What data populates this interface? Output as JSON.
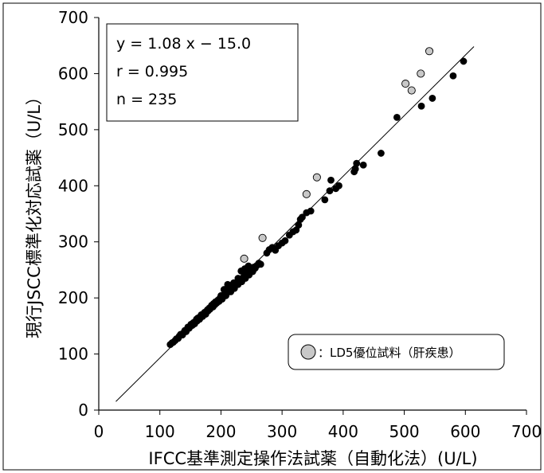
{
  "chart_data": {
    "type": "scatter",
    "xlabel": "IFCC基準測定操作法試薬（自動化法）(U/L)",
    "ylabel": "現行JSCC標準化対応試薬（U/L）",
    "xlim": [
      0,
      700
    ],
    "ylim": [
      0,
      700
    ],
    "xticks": [
      "0",
      "100",
      "200",
      "300",
      "400",
      "500",
      "600",
      "700"
    ],
    "yticks": [
      "0",
      "100",
      "200",
      "300",
      "400",
      "500",
      "600",
      "700"
    ],
    "grid": false,
    "stats": {
      "equation": "y = 1.08 x − 15.0",
      "r": "r = 0.995",
      "n": "n = 235"
    },
    "regression": {
      "slope": 1.08,
      "intercept": -15.0,
      "x_range": [
        28,
        614
      ]
    },
    "series": [
      {
        "marker": "black",
        "color": "#000000",
        "points": [
          [
            117,
            117
          ],
          [
            120,
            120
          ],
          [
            122,
            121
          ],
          [
            125,
            124
          ],
          [
            127,
            127
          ],
          [
            130,
            128
          ],
          [
            132,
            132
          ],
          [
            134,
            135
          ],
          [
            137,
            134
          ],
          [
            139,
            138
          ],
          [
            141,
            142
          ],
          [
            143,
            140
          ],
          [
            145,
            145
          ],
          [
            146,
            148
          ],
          [
            148,
            146
          ],
          [
            150,
            150
          ],
          [
            151,
            153
          ],
          [
            153,
            151
          ],
          [
            155,
            156
          ],
          [
            157,
            154
          ],
          [
            158,
            158
          ],
          [
            160,
            162
          ],
          [
            161,
            159
          ],
          [
            162,
            164
          ],
          [
            164,
            165
          ],
          [
            165,
            162
          ],
          [
            167,
            168
          ],
          [
            168,
            170
          ],
          [
            170,
            167
          ],
          [
            172,
            172
          ],
          [
            173,
            174
          ],
          [
            175,
            171
          ],
          [
            176,
            176
          ],
          [
            178,
            179
          ],
          [
            179,
            177
          ],
          [
            181,
            182
          ],
          [
            182,
            180
          ],
          [
            184,
            185
          ],
          [
            185,
            187
          ],
          [
            187,
            184
          ],
          [
            188,
            190
          ],
          [
            190,
            188
          ],
          [
            191,
            193
          ],
          [
            193,
            191
          ],
          [
            195,
            196
          ],
          [
            197,
            194
          ],
          [
            198,
            199
          ],
          [
            200,
            201
          ],
          [
            202,
            198
          ],
          [
            204,
            203
          ],
          [
            206,
            206
          ],
          [
            208,
            204
          ],
          [
            210,
            209
          ],
          [
            212,
            212
          ],
          [
            214,
            215
          ],
          [
            216,
            211
          ],
          [
            218,
            218
          ],
          [
            220,
            221
          ],
          [
            222,
            217
          ],
          [
            224,
            223
          ],
          [
            226,
            226
          ],
          [
            228,
            224
          ],
          [
            230,
            230
          ],
          [
            232,
            233
          ],
          [
            234,
            229
          ],
          [
            236,
            236
          ],
          [
            238,
            239
          ],
          [
            240,
            235
          ],
          [
            242,
            242
          ],
          [
            244,
            245
          ],
          [
            246,
            241
          ],
          [
            248,
            248
          ],
          [
            250,
            251
          ],
          [
            252,
            247
          ],
          [
            254,
            255
          ],
          [
            256,
            253
          ],
          [
            259,
            258
          ],
          [
            262,
            262
          ],
          [
            265,
            260
          ],
          [
            200,
            204
          ],
          [
            205,
            215
          ],
          [
            211,
            224
          ],
          [
            216,
            222
          ],
          [
            221,
            227
          ],
          [
            228,
            235
          ],
          [
            233,
            248
          ],
          [
            239,
            252
          ],
          [
            245,
            257
          ],
          [
            275,
            280
          ],
          [
            279,
            286
          ],
          [
            284,
            290
          ],
          [
            289,
            285
          ],
          [
            294,
            293
          ],
          [
            300,
            298
          ],
          [
            305,
            302
          ],
          [
            312,
            312
          ],
          [
            318,
            318
          ],
          [
            323,
            321
          ],
          [
            327,
            330
          ],
          [
            330,
            340
          ],
          [
            333,
            344
          ],
          [
            340,
            352
          ],
          [
            347,
            355
          ],
          [
            370,
            375
          ],
          [
            378,
            391
          ],
          [
            380,
            410
          ],
          [
            388,
            395
          ],
          [
            393,
            400
          ],
          [
            418,
            425
          ],
          [
            420,
            430
          ],
          [
            422,
            440
          ],
          [
            433,
            437
          ],
          [
            462,
            458
          ],
          [
            488,
            522
          ],
          [
            528,
            542
          ],
          [
            546,
            556
          ],
          [
            580,
            596
          ],
          [
            597,
            622
          ]
        ]
      },
      {
        "marker": "gray",
        "color": "#c8c8c8",
        "name": "：LD5優位試料（肝疾患）",
        "points": [
          [
            238,
            270
          ],
          [
            268,
            307
          ],
          [
            340,
            385
          ],
          [
            357,
            415
          ],
          [
            502,
            582
          ],
          [
            512,
            570
          ],
          [
            527,
            600
          ],
          [
            541,
            640
          ]
        ]
      }
    ],
    "legend_position": "bottom-right"
  }
}
